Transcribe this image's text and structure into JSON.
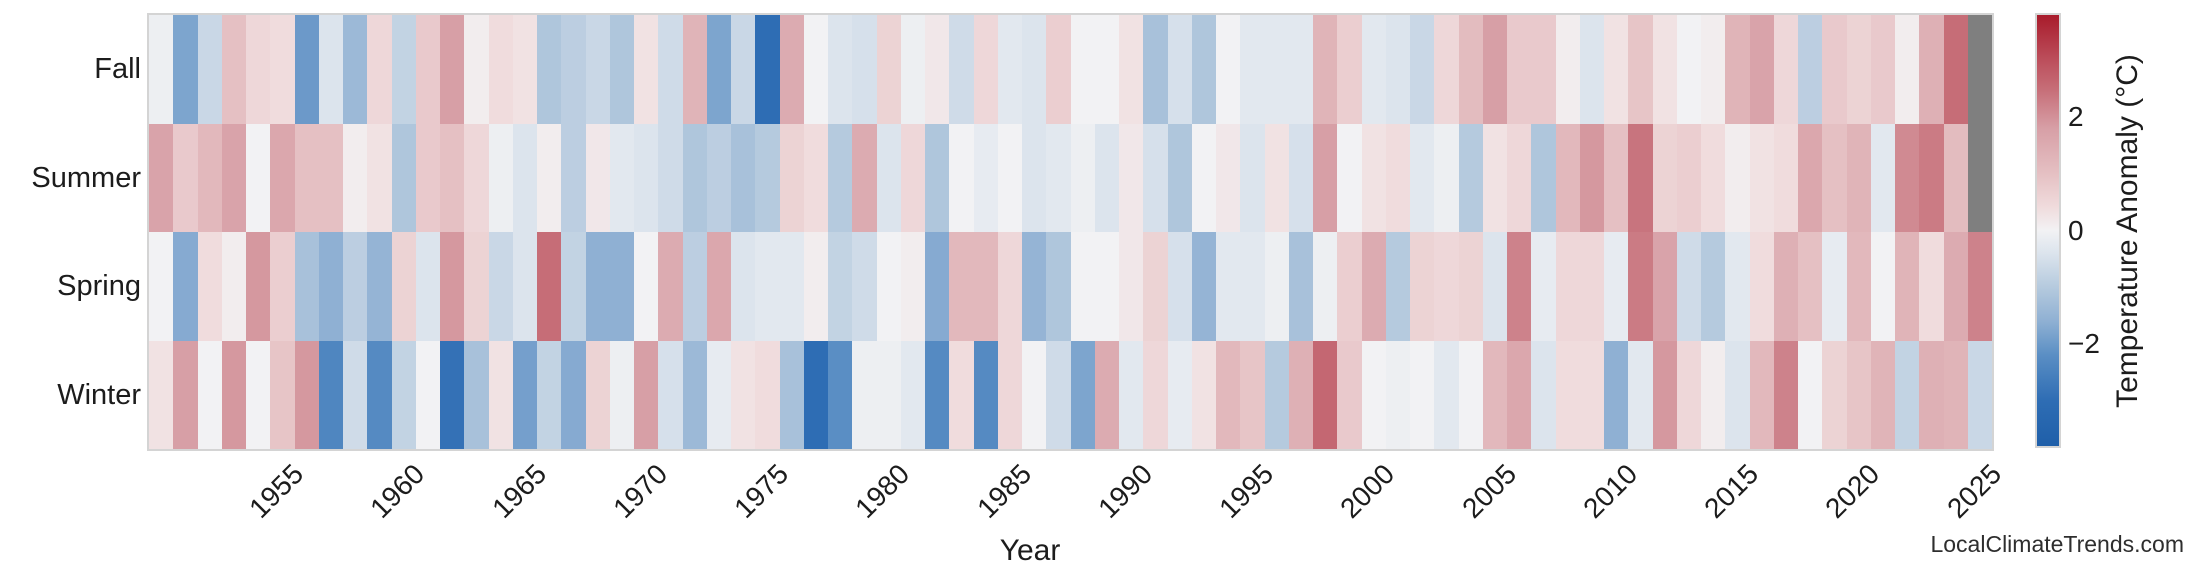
{
  "watermark": "LocalClimateTrends.com",
  "chart_data": {
    "type": "heatmap",
    "title": "",
    "xlabel": "Year",
    "ylabel": "",
    "x_start": 1950,
    "x_end": 2025,
    "x_ticks": [
      "1955",
      "1960",
      "1965",
      "1970",
      "1975",
      "1980",
      "1985",
      "1990",
      "1995",
      "2000",
      "2005",
      "2010",
      "2015",
      "2020",
      "2025"
    ],
    "rows": [
      "Fall",
      "Summer",
      "Spring",
      "Winter"
    ],
    "series": [
      {
        "name": "Fall",
        "values": [
          -0.1,
          -1.8,
          -0.7,
          1.0,
          0.5,
          0.4,
          -2.0,
          -0.4,
          -1.4,
          0.5,
          -0.8,
          0.8,
          1.8,
          0.1,
          0.4,
          0.3,
          -1.1,
          -0.9,
          -0.7,
          -1.1,
          0.3,
          -0.6,
          1.3,
          -1.8,
          -0.7,
          -3.0,
          1.5,
          0.0,
          -0.4,
          -0.5,
          0.6,
          -0.1,
          0.2,
          -0.6,
          0.5,
          -0.3,
          -0.4,
          0.7,
          0.0,
          0.0,
          0.3,
          -1.2,
          -0.5,
          -1.1,
          0.0,
          -0.3,
          -0.3,
          -0.3,
          1.3,
          0.7,
          -0.3,
          -0.4,
          -0.7,
          0.5,
          1.1,
          1.8,
          0.8,
          0.8,
          0.1,
          -0.4,
          0.3,
          0.9,
          0.3,
          0.0,
          0.1,
          1.3,
          1.7,
          0.5,
          -0.9,
          0.8,
          0.6,
          0.8,
          0.1,
          1.4,
          2.5,
          null
        ]
      },
      {
        "name": "Summer",
        "values": [
          1.7,
          0.8,
          1.2,
          1.7,
          0.0,
          1.6,
          1.0,
          1.0,
          0.1,
          0.3,
          -1.1,
          0.8,
          1.0,
          0.5,
          -0.1,
          -0.4,
          0.1,
          -0.9,
          0.2,
          -0.3,
          -0.4,
          -0.6,
          -1.1,
          -0.9,
          -1.2,
          -1.0,
          0.6,
          0.4,
          -1.0,
          1.5,
          -0.4,
          0.5,
          -1.1,
          0.0,
          -0.2,
          0.0,
          -0.4,
          -0.3,
          -0.1,
          -0.4,
          0.2,
          -0.5,
          -1.1,
          0.0,
          0.2,
          -0.4,
          0.3,
          -0.5,
          1.8,
          0.0,
          0.3,
          0.4,
          -0.3,
          -0.1,
          -1.0,
          0.3,
          0.5,
          -1.1,
          1.2,
          1.9,
          1.0,
          2.4,
          0.6,
          0.7,
          0.4,
          0.1,
          0.3,
          0.4,
          1.6,
          1.0,
          1.3,
          -0.3,
          2.1,
          2.3,
          1.1,
          null
        ]
      },
      {
        "name": "Spring",
        "values": [
          0.0,
          -1.7,
          0.4,
          0.1,
          1.9,
          0.7,
          -1.2,
          -1.6,
          -0.9,
          -1.5,
          0.6,
          -0.4,
          1.9,
          0.6,
          -0.7,
          -0.4,
          2.5,
          -0.8,
          -1.6,
          -1.6,
          0.0,
          1.5,
          -0.9,
          1.6,
          -0.4,
          -0.3,
          -0.3,
          0.1,
          -0.8,
          -0.6,
          0.0,
          0.1,
          -1.7,
          1.2,
          1.2,
          0.5,
          -1.5,
          -1.1,
          0.0,
          0.0,
          0.2,
          0.6,
          -0.5,
          -1.5,
          -0.3,
          -0.3,
          -0.1,
          -1.2,
          -0.1,
          0.7,
          1.5,
          -1.0,
          0.6,
          0.5,
          0.6,
          -0.4,
          2.2,
          -0.2,
          0.5,
          0.5,
          -0.2,
          2.3,
          1.7,
          -0.6,
          -1.0,
          -0.3,
          0.4,
          1.4,
          1.0,
          -0.2,
          1.2,
          0.0,
          1.3,
          0.4,
          1.5,
          2.2
        ]
      },
      {
        "name": "Winter",
        "values": [
          0.3,
          1.8,
          0.0,
          1.9,
          0.0,
          0.9,
          1.9,
          -2.4,
          -0.6,
          -2.3,
          -0.8,
          0.0,
          -2.9,
          -1.2,
          0.3,
          -1.9,
          -0.8,
          -1.7,
          0.6,
          -0.1,
          1.8,
          -0.5,
          -1.4,
          -0.2,
          0.3,
          0.4,
          -1.2,
          -3.0,
          -2.2,
          -0.1,
          -0.1,
          -0.3,
          -2.3,
          0.4,
          -2.3,
          0.5,
          0.0,
          -0.6,
          -1.8,
          1.5,
          -0.3,
          0.5,
          -0.2,
          0.3,
          1.2,
          0.9,
          -1.0,
          1.4,
          2.6,
          0.8,
          0.0,
          -0.1,
          0.0,
          -0.3,
          0.0,
          1.2,
          1.6,
          -0.4,
          0.4,
          0.4,
          -1.6,
          -0.3,
          1.9,
          0.5,
          0.1,
          -0.4,
          1.2,
          2.2,
          0.0,
          0.6,
          0.9,
          1.3,
          -0.8,
          1.4,
          1.3,
          -0.7
        ]
      }
    ],
    "missing_color": "#7f7f7f",
    "frame_color": "#d4d4d4",
    "colorbar": {
      "label": "Temperature Anomaly (°C)",
      "ticks": [
        2,
        0,
        -2
      ],
      "vmin": -3.8,
      "vmax": 3.8,
      "gradient_stops": [
        [
          -3.8,
          "#1f5fa9"
        ],
        [
          -3.0,
          "#2e6db4"
        ],
        [
          -2.2,
          "#5a8ec4"
        ],
        [
          -1.6,
          "#8fb0d3"
        ],
        [
          -1.0,
          "#b5cade"
        ],
        [
          -0.4,
          "#dce4ed"
        ],
        [
          0.0,
          "#f2f2f4"
        ],
        [
          0.4,
          "#f0dcdd"
        ],
        [
          1.0,
          "#e5c0c3"
        ],
        [
          1.8,
          "#d79fa6"
        ],
        [
          2.5,
          "#c66d77"
        ],
        [
          3.0,
          "#bc4f5c"
        ],
        [
          3.8,
          "#a81b2b"
        ]
      ]
    }
  }
}
